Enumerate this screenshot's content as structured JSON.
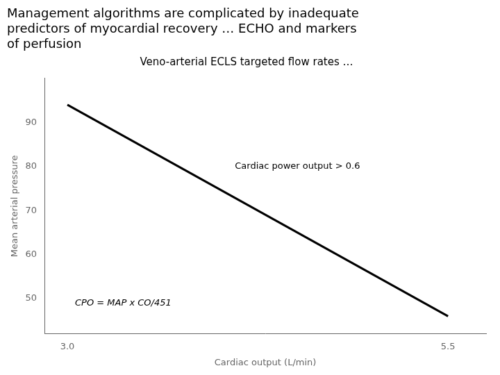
{
  "chart_data": {
    "type": "line",
    "title": [
      "Management algorithms are complicated by inadequate",
      "predictors of myocardial recovery … ECHO and markers",
      "of perfusion"
    ],
    "subtitle": "Veno-arterial ECLS targeted flow rates …",
    "x_label": "Cardiac output (L/min)",
    "y_label": "Mean arterial pressure",
    "x": [
      3.0,
      5.5
    ],
    "values": [
      94,
      46
    ],
    "color": "#000000",
    "xlim": [
      2.85,
      5.75
    ],
    "xticks": [
      {
        "value": 3.0,
        "label": "3.0"
      },
      5.5
    ],
    "ylim": [
      42,
      100
    ],
    "yticks": [
      50,
      60,
      70,
      80,
      90
    ],
    "grid": false,
    "annotations": [
      {
        "text": "Cardiac power output > 0.6",
        "x": 4.1,
        "y": 80
      },
      {
        "text": "CPO = MAP x CO/451",
        "x": 3.05,
        "y": 49
      }
    ]
  }
}
